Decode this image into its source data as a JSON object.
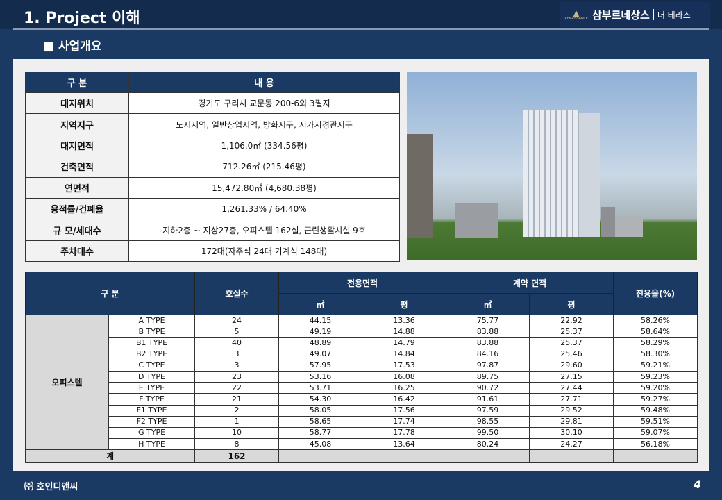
{
  "header": {
    "title": "1. Project 이해",
    "brand": "삼부르네상스",
    "brand_sub": "더 테라스",
    "brand_mark": "RENAISSANCE"
  },
  "section": "■ 사업개요",
  "overview": {
    "headers": [
      "구 분",
      "내 용"
    ],
    "rows": [
      [
        "대지위치",
        "경기도 구리시 교문동 200-6외 3필지"
      ],
      [
        "지역지구",
        "도시지역, 일반상업지역, 방화지구, 시가지경관지구"
      ],
      [
        "대지면적",
        "1,106.0㎡ (334.56평)"
      ],
      [
        "건축면적",
        "712.26㎡ (215.46평)"
      ],
      [
        "연면적",
        "15,472.80㎡ (4,680.38평)"
      ],
      [
        "용적률/건폐율",
        "1,261.33% / 64.40%"
      ],
      [
        "규 모/세대수",
        "지하2층 ~ 지상27층, 오피스텔 162실, 근린생활시설 9호"
      ],
      [
        "주차대수",
        "172대(자주식 24대 기계식 148대)"
      ]
    ]
  },
  "units": {
    "headers": {
      "category": "구 분",
      "rooms": "호실수",
      "exclusive": "전용면적",
      "contract": "계약 면적",
      "sqm": "㎡",
      "pyeong": "평",
      "ratio": "전용율(%)"
    },
    "group": "오피스텔",
    "rows": [
      [
        "A TYPE",
        "24",
        "44.15",
        "13.36",
        "75.77",
        "22.92",
        "58.26%"
      ],
      [
        "B TYPE",
        "5",
        "49.19",
        "14.88",
        "83.88",
        "25.37",
        "58.64%"
      ],
      [
        "B1 TYPE",
        "40",
        "48.89",
        "14.79",
        "83.88",
        "25.37",
        "58.29%"
      ],
      [
        "B2 TYPE",
        "3",
        "49.07",
        "14.84",
        "84.16",
        "25.46",
        "58.30%"
      ],
      [
        "C TYPE",
        "3",
        "57.95",
        "17.53",
        "97.87",
        "29.60",
        "59.21%"
      ],
      [
        "D TYPE",
        "23",
        "53.16",
        "16.08",
        "89.75",
        "27.15",
        "59.23%"
      ],
      [
        "E TYPE",
        "22",
        "53.71",
        "16.25",
        "90.72",
        "27.44",
        "59.20%"
      ],
      [
        "F TYPE",
        "21",
        "54.30",
        "16.42",
        "91.61",
        "27.71",
        "59.27%"
      ],
      [
        "F1 TYPE",
        "2",
        "58.05",
        "17.56",
        "97.59",
        "29.52",
        "59.48%"
      ],
      [
        "F2 TYPE",
        "1",
        "58.65",
        "17.74",
        "98.55",
        "29.81",
        "59.51%"
      ],
      [
        "G TYPE",
        "10",
        "58.77",
        "17.78",
        "99.50",
        "30.10",
        "59.07%"
      ],
      [
        "H TYPE",
        "8",
        "45.08",
        "13.64",
        "80.24",
        "24.27",
        "56.18%"
      ]
    ],
    "total_label": "계",
    "total_rooms": "162"
  },
  "footer": {
    "company": "㈜ 호인디앤씨",
    "page": "4"
  }
}
